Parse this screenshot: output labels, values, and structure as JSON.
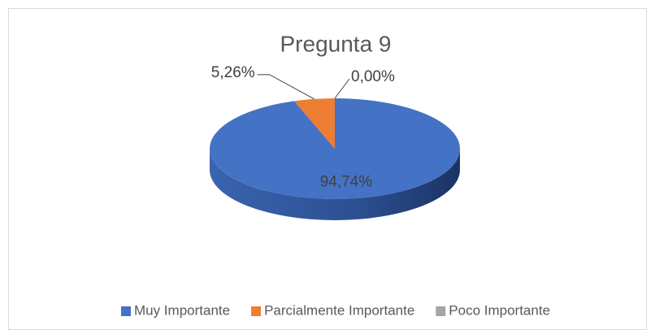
{
  "chart_data": {
    "type": "pie3d",
    "title": "Pregunta 9",
    "categories": [
      "Muy Importante",
      "Parcialmente Importante",
      "Poco Importante"
    ],
    "values": [
      94.74,
      5.26,
      0.0
    ],
    "value_labels": [
      "94,74%",
      "5,26%",
      "0,00%"
    ],
    "colors": [
      "#4472c4",
      "#ed7d31",
      "#a5a5a5"
    ],
    "legend": "bottom"
  }
}
